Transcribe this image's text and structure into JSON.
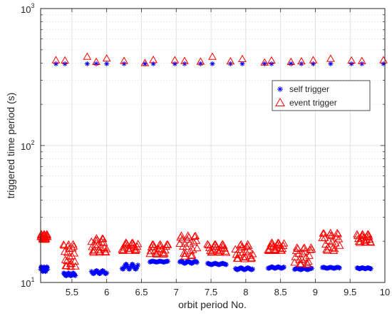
{
  "chart_data": {
    "type": "scatter",
    "xlabel": "orbit period No.",
    "ylabel": "triggered time period (s)",
    "xlim": [
      5.05,
      10.0
    ],
    "ylim": [
      10,
      1000
    ],
    "yscale": "log",
    "grid": true,
    "legend_position": "top-right",
    "x_ticks": [
      5.5,
      6,
      6.5,
      7,
      7.5,
      8,
      8.5,
      9,
      9.5,
      10
    ],
    "x_tick_labels": [
      "5.5",
      "6",
      "6.5",
      "7",
      "7.5",
      "8",
      "8.5",
      "9",
      "9.5",
      "10"
    ],
    "y_ticks": [
      {
        "value": 10,
        "base": "10",
        "exp": "1"
      },
      {
        "value": 100,
        "base": "10",
        "exp": "2"
      },
      {
        "value": 1000,
        "base": "10",
        "exp": "3"
      }
    ],
    "series": [
      {
        "name": "self trigger",
        "color": "#0000ff",
        "marker": "asterisk",
        "top_points": {
          "y": 395,
          "x": [
            5.27,
            5.4,
            5.72,
            5.85,
            6.0,
            6.25,
            6.55,
            6.67,
            6.98,
            7.12,
            7.35,
            7.52,
            7.78,
            7.95,
            8.27,
            8.37,
            8.65,
            8.8,
            8.97,
            9.22,
            9.52,
            9.67,
            9.98
          ]
        },
        "bottom_clusters": [
          {
            "x": [
              5.05,
              5.15
            ],
            "y": [
              12.0,
              13.0
            ]
          },
          {
            "x": [
              5.38,
              5.55
            ],
            "y": [
              11.2,
              11.7
            ]
          },
          {
            "x": [
              5.78,
              6.0
            ],
            "y": [
              11.6,
              12.2
            ]
          },
          {
            "x": [
              6.22,
              6.45
            ],
            "y": [
              12.5,
              13.6
            ]
          },
          {
            "x": [
              6.62,
              6.88
            ],
            "y": [
              14.1,
              14.3
            ]
          },
          {
            "x": [
              7.05,
              7.3
            ],
            "y": [
              13.8,
              14.3
            ]
          },
          {
            "x": [
              7.45,
              7.72
            ],
            "y": [
              13.5,
              13.8
            ]
          },
          {
            "x": [
              7.85,
              8.1
            ],
            "y": [
              12.4,
              12.8
            ]
          },
          {
            "x": [
              8.32,
              8.55
            ],
            "y": [
              12.7,
              13.0
            ]
          },
          {
            "x": [
              8.7,
              8.95
            ],
            "y": [
              12.4,
              12.7
            ]
          },
          {
            "x": [
              9.1,
              9.35
            ],
            "y": [
              12.7,
              12.9
            ]
          },
          {
            "x": [
              9.6,
              9.8
            ],
            "y": [
              12.6,
              12.8
            ]
          }
        ]
      },
      {
        "name": "event trigger",
        "color": "#ff0000",
        "marker": "triangle",
        "top_points": {
          "x": [
            5.27,
            5.4,
            5.72,
            5.85,
            6.0,
            6.25,
            6.55,
            6.67,
            6.98,
            7.12,
            7.35,
            7.52,
            7.78,
            7.95,
            8.27,
            8.37,
            8.65,
            8.8,
            8.97,
            9.22,
            9.52,
            9.67,
            9.98
          ],
          "y": [
            420,
            418,
            445,
            408,
            432,
            415,
            400,
            422,
            420,
            414,
            410,
            445,
            412,
            428,
            404,
            418,
            408,
            412,
            420,
            430,
            418,
            414,
            420
          ]
        },
        "bottom_clusters": [
          {
            "x": [
              5.05,
              5.15
            ],
            "y": [
              20.5,
              22.5
            ]
          },
          {
            "x": [
              5.38,
              5.55
            ],
            "y": [
              13.0,
              19.0
            ]
          },
          {
            "x": [
              5.78,
              6.0
            ],
            "y": [
              16.5,
              21.0
            ]
          },
          {
            "x": [
              6.22,
              6.45
            ],
            "y": [
              17.0,
              19.5
            ]
          },
          {
            "x": [
              6.62,
              6.88
            ],
            "y": [
              16.0,
              19.0
            ]
          },
          {
            "x": [
              7.05,
              7.3
            ],
            "y": [
              15.5,
              22.0
            ]
          },
          {
            "x": [
              7.45,
              7.72
            ],
            "y": [
              16.5,
              19.0
            ]
          },
          {
            "x": [
              7.85,
              8.1
            ],
            "y": [
              14.8,
              19.0
            ]
          },
          {
            "x": [
              8.32,
              8.55
            ],
            "y": [
              17.0,
              19.5
            ]
          },
          {
            "x": [
              8.7,
              8.95
            ],
            "y": [
              13.5,
              18.0
            ]
          },
          {
            "x": [
              9.1,
              9.35
            ],
            "y": [
              17.0,
              23.0
            ]
          },
          {
            "x": [
              9.6,
              9.8
            ],
            "y": [
              19.5,
              22.5
            ]
          }
        ]
      }
    ]
  }
}
